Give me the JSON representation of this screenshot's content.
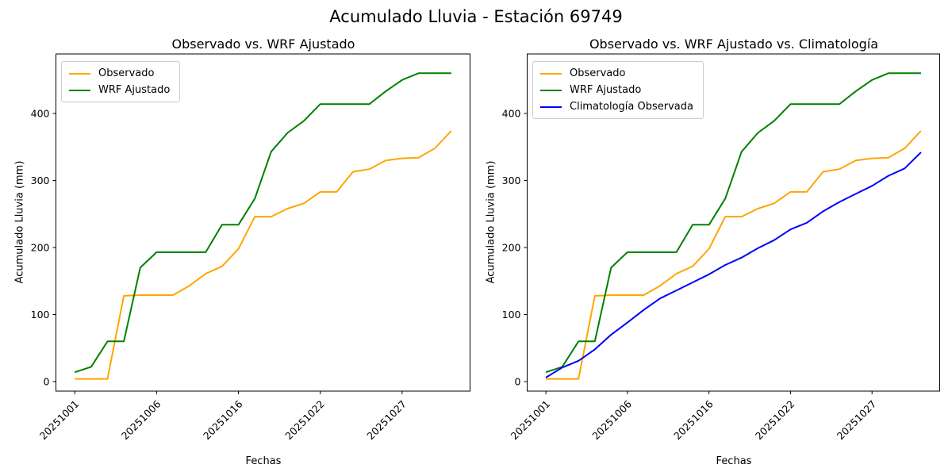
{
  "figure": {
    "title": "Acumulado Lluvia - Estación 69749"
  },
  "chart_data": [
    {
      "type": "line",
      "title": "Observado vs. WRF Ajustado",
      "xlabel": "Fechas",
      "ylabel": "Acumulado Lluvia (mm)",
      "n_points": 24,
      "ylim": [
        -15,
        489
      ],
      "grid": false,
      "legend_position": "upper left",
      "yticks": [
        0,
        100,
        200,
        300,
        400
      ],
      "x_ticks": [
        {
          "index": 0,
          "label": "20251001"
        },
        {
          "index": 5,
          "label": "20251006"
        },
        {
          "index": 10,
          "label": "20251016"
        },
        {
          "index": 15,
          "label": "20251022"
        },
        {
          "index": 20,
          "label": "20251027"
        }
      ],
      "series": [
        {
          "name": "Observado",
          "color": "#ffa500",
          "values": [
            4,
            4,
            4,
            128,
            129,
            129,
            129,
            143,
            161,
            172,
            198,
            246,
            246,
            258,
            266,
            283,
            283,
            313,
            317,
            330,
            333,
            334,
            348,
            374
          ]
        },
        {
          "name": "WRF Ajustado",
          "color": "#008000",
          "values": [
            14,
            22,
            60,
            60,
            170,
            193,
            193,
            193,
            193,
            234,
            234,
            273,
            343,
            371,
            389,
            414,
            414,
            414,
            414,
            433,
            450,
            460,
            460,
            460
          ]
        }
      ]
    },
    {
      "type": "line",
      "title": "Observado vs. WRF Ajustado vs. Climatología",
      "xlabel": "Fechas",
      "ylabel": "Acumulado Lluvia (mm)",
      "n_points": 24,
      "ylim": [
        -15,
        489
      ],
      "grid": false,
      "legend_position": "upper left",
      "yticks": [
        0,
        100,
        200,
        300,
        400
      ],
      "x_ticks": [
        {
          "index": 0,
          "label": "20251001"
        },
        {
          "index": 5,
          "label": "20251006"
        },
        {
          "index": 10,
          "label": "20251016"
        },
        {
          "index": 15,
          "label": "20251022"
        },
        {
          "index": 20,
          "label": "20251027"
        }
      ],
      "series": [
        {
          "name": "Observado",
          "color": "#ffa500",
          "values": [
            4,
            4,
            4,
            128,
            129,
            129,
            129,
            143,
            161,
            172,
            198,
            246,
            246,
            258,
            266,
            283,
            283,
            313,
            317,
            330,
            333,
            334,
            348,
            374
          ]
        },
        {
          "name": "WRF Ajustado",
          "color": "#008000",
          "values": [
            14,
            22,
            60,
            60,
            170,
            193,
            193,
            193,
            193,
            234,
            234,
            273,
            343,
            371,
            389,
            414,
            414,
            414,
            414,
            433,
            450,
            460,
            460,
            460
          ]
        },
        {
          "name": "Climatología Observada",
          "color": "#0000ff",
          "values": [
            6,
            21,
            31,
            48,
            70,
            88,
            107,
            124,
            136,
            148,
            160,
            174,
            185,
            199,
            211,
            227,
            237,
            254,
            268,
            280,
            292,
            307,
            318,
            342
          ]
        }
      ]
    }
  ]
}
